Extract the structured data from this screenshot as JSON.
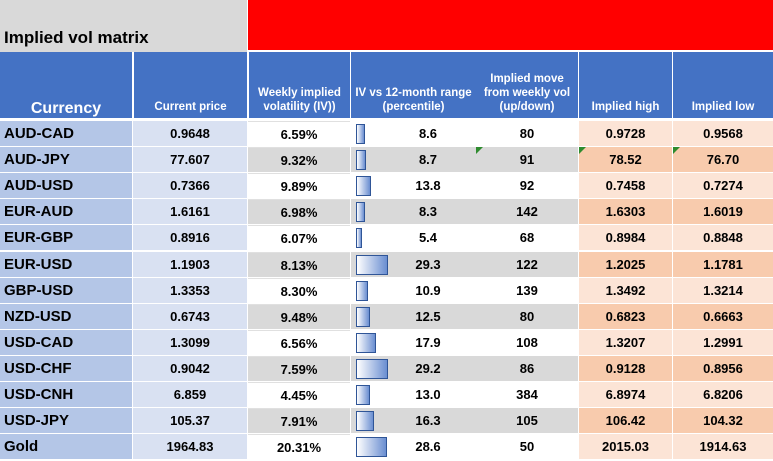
{
  "title": "Implied vol matrix",
  "headers": {
    "currency": "Currency",
    "current_price": "Current price",
    "weekly_iv": "Weekly implied volatility (IV))",
    "iv_range": "IV vs  12-month range (percentile)",
    "implied_move": "Implied move from weekly vol (up/down)",
    "implied_high": "Implied high",
    "implied_low": "Implied low"
  },
  "colors": {
    "header_blue": "#4472c4",
    "currency_col": "#b4c6e7",
    "price_col": "#d9e1f2",
    "band_gray": "#d9d9d9",
    "implied_peach_dark": "#f8cbad",
    "implied_peach_light": "#fce4d6",
    "red_band": "#ff0000"
  },
  "rows": [
    {
      "currency": "AUD-CAD",
      "price": "0.9648",
      "weekly_iv": "6.59%",
      "iv_pct": "8.6",
      "move": "80",
      "high": "0.9728",
      "low": "0.9568"
    },
    {
      "currency": "AUD-JPY",
      "price": "77.607",
      "weekly_iv": "9.32%",
      "iv_pct": "8.7",
      "move": "91",
      "high": "78.52",
      "low": "76.70"
    },
    {
      "currency": "AUD-USD",
      "price": "0.7366",
      "weekly_iv": "9.89%",
      "iv_pct": "13.8",
      "move": "92",
      "high": "0.7458",
      "low": "0.7274"
    },
    {
      "currency": "EUR-AUD",
      "price": "1.6161",
      "weekly_iv": "6.98%",
      "iv_pct": "8.3",
      "move": "142",
      "high": "1.6303",
      "low": "1.6019"
    },
    {
      "currency": "EUR-GBP",
      "price": "0.8916",
      "weekly_iv": "6.07%",
      "iv_pct": "5.4",
      "move": "68",
      "high": "0.8984",
      "low": "0.8848"
    },
    {
      "currency": "EUR-USD",
      "price": "1.1903",
      "weekly_iv": "8.13%",
      "iv_pct": "29.3",
      "move": "122",
      "high": "1.2025",
      "low": "1.1781"
    },
    {
      "currency": "GBP-USD",
      "price": "1.3353",
      "weekly_iv": "8.30%",
      "iv_pct": "10.9",
      "move": "139",
      "high": "1.3492",
      "low": "1.3214"
    },
    {
      "currency": "NZD-USD",
      "price": "0.6743",
      "weekly_iv": "9.48%",
      "iv_pct": "12.5",
      "move": "80",
      "high": "0.6823",
      "low": "0.6663"
    },
    {
      "currency": "USD-CAD",
      "price": "1.3099",
      "weekly_iv": "6.56%",
      "iv_pct": "17.9",
      "move": "108",
      "high": "1.3207",
      "low": "1.2991"
    },
    {
      "currency": "USD-CHF",
      "price": "0.9042",
      "weekly_iv": "7.59%",
      "iv_pct": "29.2",
      "move": "86",
      "high": "0.9128",
      "low": "0.8956"
    },
    {
      "currency": "USD-CNH",
      "price": "6.859",
      "weekly_iv": "4.45%",
      "iv_pct": "13.0",
      "move": "384",
      "high": "6.8974",
      "low": "6.8206"
    },
    {
      "currency": "USD-JPY",
      "price": "105.37",
      "weekly_iv": "7.91%",
      "iv_pct": "16.3",
      "move": "105",
      "high": "106.42",
      "low": "104.32"
    },
    {
      "currency": "Gold",
      "price": "1964.83",
      "weekly_iv": "20.31%",
      "iv_pct": "28.6",
      "move": "50",
      "high": "2015.03",
      "low": "1914.63"
    }
  ]
}
